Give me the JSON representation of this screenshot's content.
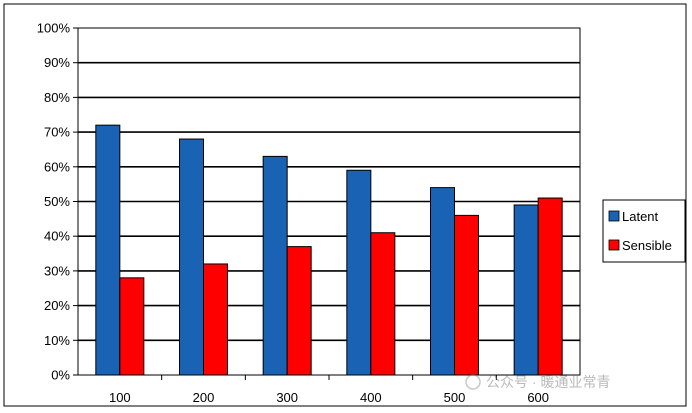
{
  "chart_data": {
    "type": "bar",
    "categories": [
      "100",
      "200",
      "300",
      "400",
      "500",
      "600"
    ],
    "series": [
      {
        "name": "Latent",
        "color": "#1a63b4",
        "values": [
          72,
          68,
          63,
          59,
          54,
          49
        ]
      },
      {
        "name": "Sensible",
        "color": "#ff0000",
        "values": [
          28,
          32,
          37,
          41,
          46,
          51
        ]
      }
    ],
    "yticks": [
      "0%",
      "10%",
      "20%",
      "30%",
      "40%",
      "50%",
      "60%",
      "70%",
      "80%",
      "90%",
      "100%"
    ],
    "ylim": [
      0,
      100
    ],
    "grid": true,
    "legend_position": "right",
    "title": "",
    "xlabel": "",
    "ylabel": ""
  },
  "watermark": {
    "text": "公众号 · 暖通业常青"
  }
}
